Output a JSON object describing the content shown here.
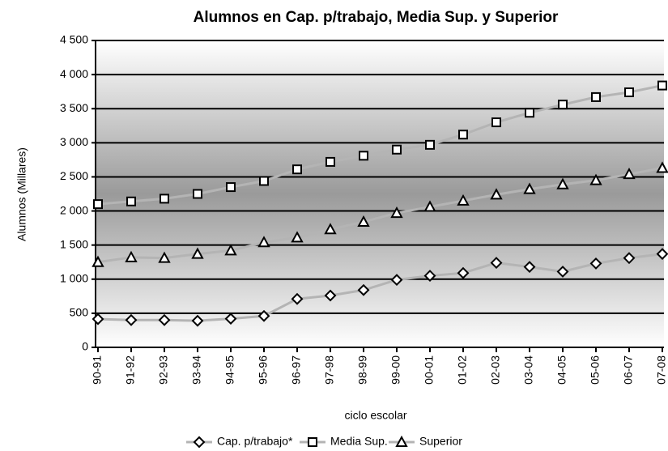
{
  "chart_data": {
    "type": "line",
    "title": "Alumnos en Cap. p/trabajo, Media Sup. y Superior",
    "x_label": "ciclo escolar",
    "y_label": "Alumnos (Millares)",
    "categories": [
      "90-91",
      "91-92",
      "92-93",
      "93-94",
      "94-95",
      "95-96",
      "96-97",
      "97-98",
      "98-99",
      "99-00",
      "00-01",
      "01-02",
      "02-03",
      "03-04",
      "04-05",
      "05-06",
      "06-07",
      "07-08"
    ],
    "series": [
      {
        "name": "Cap. p/trabajo*",
        "color": "#b4b4b4",
        "marker": "diamond",
        "values": [
          415,
          400,
          400,
          390,
          420,
          460,
          710,
          760,
          840,
          990,
          1050,
          1090,
          1240,
          1180,
          1110,
          1230,
          1310,
          1370
        ]
      },
      {
        "name": "Media Sup.",
        "color": "#b4b4b4",
        "marker": "square",
        "values": [
          2100,
          2140,
          2180,
          2250,
          2350,
          2440,
          2610,
          2720,
          2810,
          2900,
          2970,
          3120,
          3300,
          3440,
          3560,
          3670,
          3740,
          3840
        ]
      },
      {
        "name": "Superior",
        "color": "#b4b4b4",
        "marker": "triangle",
        "values": [
          1250,
          1320,
          1310,
          1370,
          1420,
          1540,
          1610,
          1730,
          1840,
          1970,
          2060,
          2150,
          2240,
          2320,
          2390,
          2450,
          2540,
          2630
        ]
      }
    ],
    "ylim": [
      0,
      4500
    ],
    "yticks": [
      0,
      500,
      {
        "value": 1000,
        "label": "1 000"
      },
      {
        "value": 1500,
        "label": "1 500"
      },
      {
        "value": 2000,
        "label": "2 000"
      },
      {
        "value": 2500,
        "label": "2 500"
      },
      {
        "value": 3000,
        "label": "3 000"
      },
      {
        "value": 3500,
        "label": "3 500"
      },
      {
        "value": 4000,
        "label": "4 000"
      },
      {
        "value": 4500,
        "label": "4 500"
      }
    ],
    "grid": true,
    "legend": "bottom"
  }
}
